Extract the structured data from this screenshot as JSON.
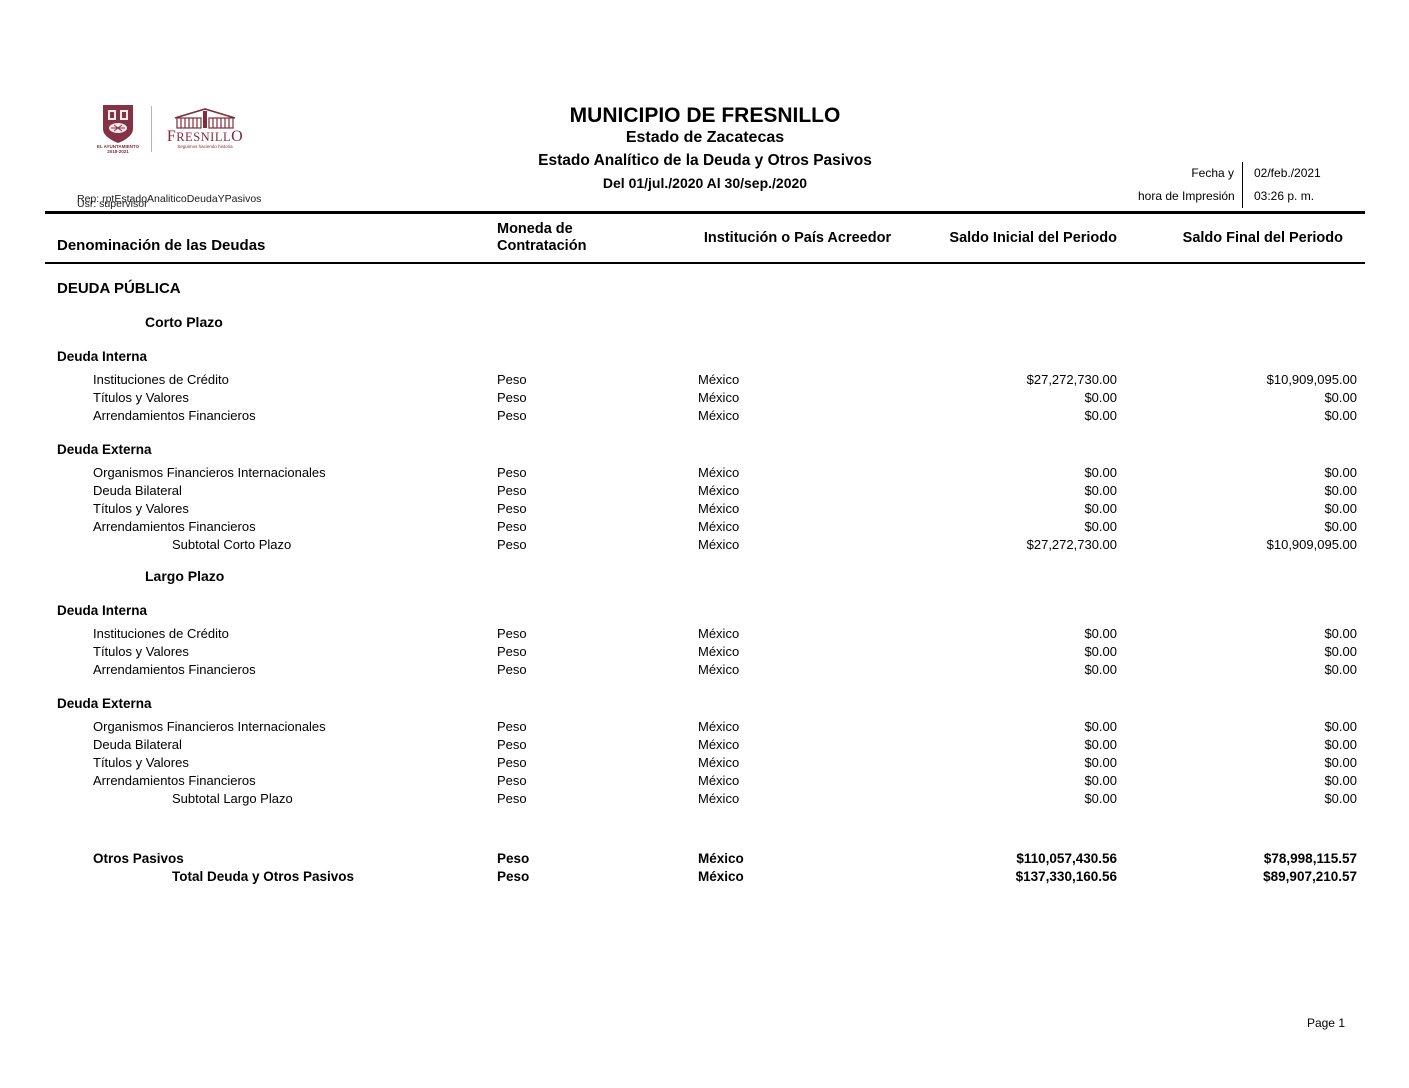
{
  "logo": {
    "crest_caption_line1": "EL AYUNTAMIENTO",
    "crest_caption_line2": "2018-2021",
    "wordmark_first": "F",
    "wordmark_mid": "RESNILL",
    "wordmark_last": "O",
    "tagline": "Seguimos haciendo historia",
    "brand_color": "#7e2d3c"
  },
  "header": {
    "title": "MUNICIPIO DE FRESNILLO",
    "subtitle": "Estado de Zacatecas",
    "report_name": "Estado Analítico de la Deuda y Otros Pasivos",
    "period": "Del 01/jul./2020 Al 30/sep./2020",
    "report_id": "Rep: rptEstadoAnaliticoDeudaYPasivos",
    "user": "Usr: supervisor",
    "print_label_line1": "Fecha y",
    "print_label_line2": "hora de Impresión",
    "print_date": "02/feb./2021",
    "print_time": "03:26 p. m."
  },
  "table": {
    "columns": {
      "denominacion": "Denominación de las Deudas",
      "moneda": "Moneda de Contratación",
      "institucion": "Institución o País Acreedor",
      "saldo_inicial": "Saldo Inicial del Periodo",
      "saldo_final": "Saldo Final del Periodo"
    },
    "rows": [
      {
        "type": "section",
        "label": "DEUDA PÚBLICA",
        "moneda": "",
        "institucion": "",
        "saldo_inicial": "",
        "saldo_final": ""
      },
      {
        "type": "plazo",
        "label": "Corto Plazo",
        "moneda": "",
        "institucion": "",
        "saldo_inicial": "",
        "saldo_final": ""
      },
      {
        "type": "group",
        "label": "Deuda Interna",
        "moneda": "",
        "institucion": "",
        "saldo_inicial": "",
        "saldo_final": ""
      },
      {
        "type": "item",
        "label": "Instituciones de Crédito",
        "moneda": "Peso",
        "institucion": "México",
        "saldo_inicial": "$27,272,730.00",
        "saldo_final": "$10,909,095.00"
      },
      {
        "type": "item",
        "label": "Títulos y Valores",
        "moneda": "Peso",
        "institucion": "México",
        "saldo_inicial": "$0.00",
        "saldo_final": "$0.00"
      },
      {
        "type": "item",
        "label": "Arrendamientos Financieros",
        "moneda": "Peso",
        "institucion": "México",
        "saldo_inicial": "$0.00",
        "saldo_final": "$0.00"
      },
      {
        "type": "group",
        "label": "Deuda Externa",
        "moneda": "",
        "institucion": "",
        "saldo_inicial": "",
        "saldo_final": ""
      },
      {
        "type": "item",
        "label": "Organismos Financieros Internacionales",
        "moneda": "Peso",
        "institucion": "México",
        "saldo_inicial": "$0.00",
        "saldo_final": "$0.00"
      },
      {
        "type": "item",
        "label": "Deuda Bilateral",
        "moneda": "Peso",
        "institucion": "México",
        "saldo_inicial": "$0.00",
        "saldo_final": "$0.00"
      },
      {
        "type": "item",
        "label": "Títulos y Valores",
        "moneda": "Peso",
        "institucion": "México",
        "saldo_inicial": "$0.00",
        "saldo_final": "$0.00"
      },
      {
        "type": "item",
        "label": "Arrendamientos Financieros",
        "moneda": "Peso",
        "institucion": "México",
        "saldo_inicial": "$0.00",
        "saldo_final": "$0.00"
      },
      {
        "type": "subtotal",
        "label": "Subtotal Corto Plazo",
        "moneda": "Peso",
        "institucion": "México",
        "saldo_inicial": "$27,272,730.00",
        "saldo_final": "$10,909,095.00"
      },
      {
        "type": "plazo",
        "label": "Largo Plazo",
        "moneda": "",
        "institucion": "",
        "saldo_inicial": "",
        "saldo_final": ""
      },
      {
        "type": "group",
        "label": "Deuda Interna",
        "moneda": "",
        "institucion": "",
        "saldo_inicial": "",
        "saldo_final": ""
      },
      {
        "type": "item",
        "label": "Instituciones de Crédito",
        "moneda": "Peso",
        "institucion": "México",
        "saldo_inicial": "$0.00",
        "saldo_final": "$0.00"
      },
      {
        "type": "item",
        "label": "Títulos y Valores",
        "moneda": "Peso",
        "institucion": "México",
        "saldo_inicial": "$0.00",
        "saldo_final": "$0.00"
      },
      {
        "type": "item",
        "label": "Arrendamientos Financieros",
        "moneda": "Peso",
        "institucion": "México",
        "saldo_inicial": "$0.00",
        "saldo_final": "$0.00"
      },
      {
        "type": "group",
        "label": "Deuda Externa",
        "moneda": "",
        "institucion": "",
        "saldo_inicial": "",
        "saldo_final": ""
      },
      {
        "type": "item",
        "label": "Organismos Financieros Internacionales",
        "moneda": "Peso",
        "institucion": "México",
        "saldo_inicial": "$0.00",
        "saldo_final": "$0.00"
      },
      {
        "type": "item",
        "label": "Deuda Bilateral",
        "moneda": "Peso",
        "institucion": "México",
        "saldo_inicial": "$0.00",
        "saldo_final": "$0.00"
      },
      {
        "type": "item",
        "label": "Títulos y Valores",
        "moneda": "Peso",
        "institucion": "México",
        "saldo_inicial": "$0.00",
        "saldo_final": "$0.00"
      },
      {
        "type": "item",
        "label": "Arrendamientos Financieros",
        "moneda": "Peso",
        "institucion": "México",
        "saldo_inicial": "$0.00",
        "saldo_final": "$0.00"
      },
      {
        "type": "subtotal",
        "label": "Subtotal Largo Plazo",
        "moneda": "Peso",
        "institucion": "México",
        "saldo_inicial": "$0.00",
        "saldo_final": "$0.00"
      },
      {
        "type": "bold-item",
        "label": "Otros Pasivos",
        "moneda": "Peso",
        "institucion": "México",
        "saldo_inicial": "$110,057,430.56",
        "saldo_final": "$78,998,115.57"
      },
      {
        "type": "total",
        "label": "Total Deuda y Otros Pasivos",
        "moneda": "Peso",
        "institucion": "México",
        "saldo_inicial": "$137,330,160.56",
        "saldo_final": "$89,907,210.57"
      }
    ]
  },
  "footer": {
    "page": "Page 1"
  }
}
